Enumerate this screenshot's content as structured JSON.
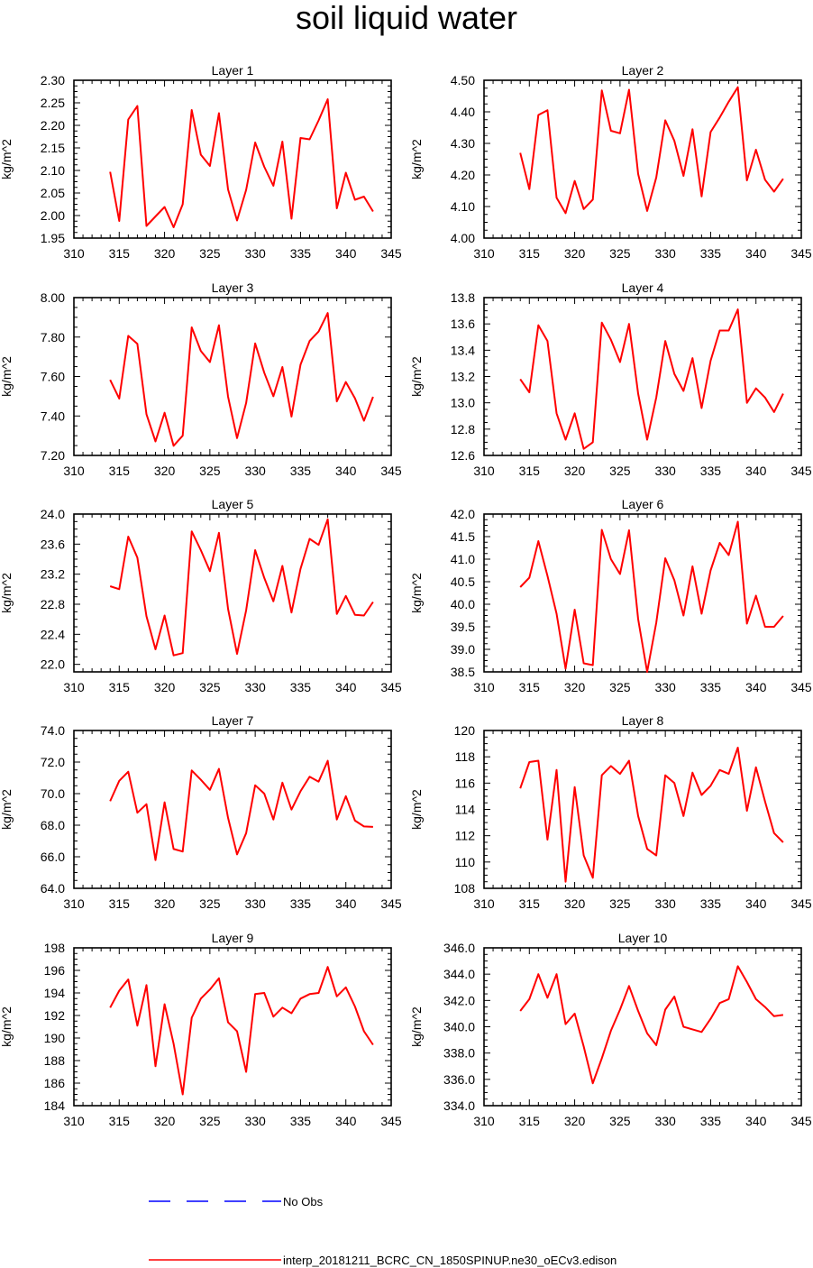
{
  "title": "soil liquid water",
  "line_color": "#ff0000",
  "obs_color": "#0000ff",
  "legend": {
    "obs_label": "No Obs",
    "model_label": "interp_20181211_BCRC_CN_1850SPINUP.ne30_oECv3.edison"
  },
  "chart_data": [
    {
      "type": "line",
      "title": "Layer 1",
      "ylabel": "kg/m^2",
      "xlim": [
        310,
        345
      ],
      "xticks": [
        310,
        315,
        320,
        325,
        330,
        335,
        340,
        345
      ],
      "ylim": [
        1.95,
        2.3
      ],
      "yticks": [
        "1.95",
        "2.00",
        "2.05",
        "2.10",
        "2.15",
        "2.20",
        "2.25",
        "2.30"
      ],
      "x": [
        314,
        315,
        316,
        317,
        318,
        319,
        320,
        321,
        322,
        323,
        324,
        325,
        326,
        327,
        328,
        329,
        330,
        331,
        332,
        333,
        334,
        335,
        336,
        337,
        338,
        339,
        340,
        341,
        342,
        343
      ],
      "series": [
        {
          "values": [
            2.097,
            1.988,
            2.213,
            2.243,
            1.977,
            1.998,
            2.019,
            1.974,
            2.025,
            2.234,
            2.135,
            2.11,
            2.227,
            2.058,
            1.989,
            2.057,
            2.162,
            2.108,
            2.066,
            2.164,
            1.993,
            2.172,
            2.169,
            2.211,
            2.258,
            2.016,
            2.095,
            2.035,
            2.042,
            2.009
          ]
        }
      ]
    },
    {
      "type": "line",
      "title": "Layer 2",
      "ylabel": "kg/m^2",
      "xlim": [
        310,
        345
      ],
      "xticks": [
        310,
        315,
        320,
        325,
        330,
        335,
        340,
        345
      ],
      "ylim": [
        4.0,
        4.5
      ],
      "yticks": [
        "4.00",
        "4.10",
        "4.20",
        "4.30",
        "4.40",
        "4.50"
      ],
      "x": [
        314,
        315,
        316,
        317,
        318,
        319,
        320,
        321,
        322,
        323,
        324,
        325,
        326,
        327,
        328,
        329,
        330,
        331,
        332,
        333,
        334,
        335,
        336,
        337,
        338,
        339,
        340,
        341,
        342,
        343
      ],
      "series": [
        {
          "values": [
            4.27,
            4.155,
            4.39,
            4.405,
            4.128,
            4.079,
            4.181,
            4.092,
            4.122,
            4.468,
            4.34,
            4.332,
            4.47,
            4.203,
            4.086,
            4.192,
            4.373,
            4.308,
            4.197,
            4.345,
            4.132,
            4.336,
            4.382,
            4.432,
            4.478,
            4.183,
            4.28,
            4.185,
            4.147,
            4.188
          ]
        }
      ]
    },
    {
      "type": "line",
      "title": "Layer 3",
      "ylabel": "kg/m^2",
      "xlim": [
        310,
        345
      ],
      "xticks": [
        310,
        315,
        320,
        325,
        330,
        335,
        340,
        345
      ],
      "ylim": [
        7.2,
        8.0
      ],
      "yticks": [
        "7.20",
        "7.40",
        "7.60",
        "7.80",
        "8.00"
      ],
      "x": [
        314,
        315,
        316,
        317,
        318,
        319,
        320,
        321,
        322,
        323,
        324,
        325,
        326,
        327,
        328,
        329,
        330,
        331,
        332,
        333,
        334,
        335,
        336,
        337,
        338,
        339,
        340,
        341,
        342,
        343
      ],
      "series": [
        {
          "values": [
            7.583,
            7.488,
            7.806,
            7.766,
            7.409,
            7.271,
            7.416,
            7.249,
            7.3,
            7.849,
            7.73,
            7.673,
            7.86,
            7.498,
            7.288,
            7.466,
            7.768,
            7.619,
            7.5,
            7.648,
            7.397,
            7.66,
            7.78,
            7.828,
            7.922,
            7.474,
            7.572,
            7.49,
            7.376,
            7.497
          ]
        }
      ]
    },
    {
      "type": "line",
      "title": "Layer 4",
      "ylabel": "kg/m^2",
      "xlim": [
        310,
        345
      ],
      "xticks": [
        310,
        315,
        320,
        325,
        330,
        335,
        340,
        345
      ],
      "ylim": [
        12.6,
        13.8
      ],
      "yticks": [
        "12.6",
        "12.8",
        "13.0",
        "13.2",
        "13.4",
        "13.6",
        "13.8"
      ],
      "x": [
        314,
        315,
        316,
        317,
        318,
        319,
        320,
        321,
        322,
        323,
        324,
        325,
        326,
        327,
        328,
        329,
        330,
        331,
        332,
        333,
        334,
        335,
        336,
        337,
        338,
        339,
        340,
        341,
        342,
        343
      ],
      "series": [
        {
          "values": [
            13.18,
            13.08,
            13.59,
            13.47,
            12.92,
            12.72,
            12.92,
            12.65,
            12.7,
            13.61,
            13.48,
            13.31,
            13.6,
            13.07,
            12.72,
            13.04,
            13.47,
            13.22,
            13.09,
            13.34,
            12.96,
            13.32,
            13.55,
            13.55,
            13.71,
            13.0,
            13.11,
            13.04,
            12.93,
            13.07
          ]
        }
      ]
    },
    {
      "type": "line",
      "title": "Layer 5",
      "ylabel": "kg/m^2",
      "xlim": [
        310,
        345
      ],
      "xticks": [
        310,
        315,
        320,
        325,
        330,
        335,
        340,
        345
      ],
      "ylim": [
        21.9,
        24.0
      ],
      "yticks": [
        "22.0",
        "22.4",
        "22.8",
        "23.2",
        "23.6",
        "24.0"
      ],
      "x": [
        314,
        315,
        316,
        317,
        318,
        319,
        320,
        321,
        322,
        323,
        324,
        325,
        326,
        327,
        328,
        329,
        330,
        331,
        332,
        333,
        334,
        335,
        336,
        337,
        338,
        339,
        340,
        341,
        342,
        343
      ],
      "series": [
        {
          "values": [
            23.04,
            23.0,
            23.7,
            23.42,
            22.64,
            22.2,
            22.65,
            22.12,
            22.15,
            23.77,
            23.52,
            23.24,
            23.75,
            22.74,
            22.14,
            22.72,
            23.52,
            23.15,
            22.84,
            23.31,
            22.69,
            23.27,
            23.67,
            23.59,
            23.93,
            22.67,
            22.91,
            22.66,
            22.65,
            22.83
          ]
        }
      ]
    },
    {
      "type": "line",
      "title": "Layer 6",
      "ylabel": "kg/m^2",
      "xlim": [
        310,
        345
      ],
      "xticks": [
        310,
        315,
        320,
        325,
        330,
        335,
        340,
        345
      ],
      "ylim": [
        38.5,
        42.0
      ],
      "yticks": [
        "38.5",
        "39.0",
        "39.5",
        "40.0",
        "40.5",
        "41.0",
        "41.5",
        "42.0"
      ],
      "x": [
        314,
        315,
        316,
        317,
        318,
        319,
        320,
        321,
        322,
        323,
        324,
        325,
        326,
        327,
        328,
        329,
        330,
        331,
        332,
        333,
        334,
        335,
        336,
        337,
        338,
        339,
        340,
        341,
        342,
        343
      ],
      "series": [
        {
          "values": [
            40.38,
            40.59,
            41.4,
            40.63,
            39.79,
            38.57,
            39.88,
            38.69,
            38.65,
            41.65,
            41.0,
            40.67,
            41.64,
            39.67,
            38.5,
            39.59,
            41.02,
            40.53,
            39.75,
            40.84,
            39.79,
            40.75,
            41.36,
            41.09,
            41.83,
            39.57,
            40.19,
            39.5,
            39.5,
            39.74
          ]
        }
      ]
    },
    {
      "type": "line",
      "title": "Layer 7",
      "ylabel": "kg/m^2",
      "xlim": [
        310,
        345
      ],
      "xticks": [
        310,
        315,
        320,
        325,
        330,
        335,
        340,
        345
      ],
      "ylim": [
        64.0,
        74.0
      ],
      "yticks": [
        "64.0",
        "66.0",
        "68.0",
        "70.0",
        "72.0",
        "74.0"
      ],
      "x": [
        314,
        315,
        316,
        317,
        318,
        319,
        320,
        321,
        322,
        323,
        324,
        325,
        326,
        327,
        328,
        329,
        330,
        331,
        332,
        333,
        334,
        335,
        336,
        337,
        338,
        339,
        340,
        341,
        342,
        343
      ],
      "series": [
        {
          "values": [
            69.52,
            70.81,
            71.39,
            68.79,
            69.33,
            65.79,
            69.45,
            66.49,
            66.33,
            71.47,
            70.88,
            70.24,
            71.57,
            68.47,
            66.15,
            67.5,
            70.53,
            70.0,
            68.36,
            70.7,
            68.99,
            70.15,
            71.07,
            70.76,
            72.08,
            68.36,
            69.84,
            68.29,
            67.92,
            67.89
          ]
        }
      ]
    },
    {
      "type": "line",
      "title": "Layer 8",
      "ylabel": "kg/m^2",
      "xlim": [
        310,
        345
      ],
      "xticks": [
        310,
        315,
        320,
        325,
        330,
        335,
        340,
        345
      ],
      "ylim": [
        108,
        120
      ],
      "yticks": [
        "108",
        "110",
        "112",
        "114",
        "116",
        "118",
        "120"
      ],
      "x": [
        314,
        315,
        316,
        317,
        318,
        319,
        320,
        321,
        322,
        323,
        324,
        325,
        326,
        327,
        328,
        329,
        330,
        331,
        332,
        333,
        334,
        335,
        336,
        337,
        338,
        339,
        340,
        341,
        342,
        343
      ],
      "series": [
        {
          "values": [
            115.6,
            117.6,
            117.7,
            111.7,
            117.0,
            108.5,
            115.7,
            110.5,
            108.8,
            116.6,
            117.3,
            116.7,
            117.7,
            113.5,
            111.0,
            110.5,
            116.6,
            116.0,
            113.5,
            116.8,
            115.1,
            115.8,
            117.0,
            116.7,
            118.7,
            113.9,
            117.2,
            114.6,
            112.2,
            111.5
          ]
        }
      ]
    },
    {
      "type": "line",
      "title": "Layer 9",
      "ylabel": "kg/m^2",
      "xlim": [
        310,
        345
      ],
      "xticks": [
        310,
        315,
        320,
        325,
        330,
        335,
        340,
        345
      ],
      "ylim": [
        184,
        198
      ],
      "yticks": [
        "184",
        "186",
        "188",
        "190",
        "192",
        "194",
        "196",
        "198"
      ],
      "x": [
        314,
        315,
        316,
        317,
        318,
        319,
        320,
        321,
        322,
        323,
        324,
        325,
        326,
        327,
        328,
        329,
        330,
        331,
        332,
        333,
        334,
        335,
        336,
        337,
        338,
        339,
        340,
        341,
        342,
        343
      ],
      "series": [
        {
          "values": [
            192.7,
            194.2,
            195.2,
            191.1,
            194.7,
            187.5,
            193.0,
            189.5,
            185.0,
            191.8,
            193.5,
            194.3,
            195.3,
            191.4,
            190.6,
            187.0,
            193.9,
            194.0,
            191.9,
            192.7,
            192.2,
            193.5,
            193.9,
            194.0,
            196.3,
            193.7,
            194.5,
            192.8,
            190.6,
            189.4
          ]
        }
      ]
    },
    {
      "type": "line",
      "title": "Layer 10",
      "ylabel": "kg/m^2",
      "xlim": [
        310,
        345
      ],
      "xticks": [
        310,
        315,
        320,
        325,
        330,
        335,
        340,
        345
      ],
      "ylim": [
        334.0,
        346.0
      ],
      "yticks": [
        "334.0",
        "336.0",
        "338.0",
        "340.0",
        "342.0",
        "344.0",
        "346.0"
      ],
      "x": [
        314,
        315,
        316,
        317,
        318,
        319,
        320,
        321,
        322,
        323,
        324,
        325,
        326,
        327,
        328,
        329,
        330,
        331,
        332,
        333,
        334,
        335,
        336,
        337,
        338,
        339,
        340,
        341,
        342,
        343
      ],
      "series": [
        {
          "values": [
            341.2,
            342.1,
            344.0,
            342.2,
            344.0,
            340.2,
            341.0,
            338.5,
            335.7,
            337.6,
            339.7,
            341.3,
            343.1,
            341.2,
            339.5,
            338.6,
            341.3,
            342.3,
            340.0,
            339.8,
            339.6,
            340.6,
            341.8,
            342.1,
            344.6,
            343.4,
            342.1,
            341.5,
            340.8,
            340.9
          ]
        }
      ]
    }
  ]
}
